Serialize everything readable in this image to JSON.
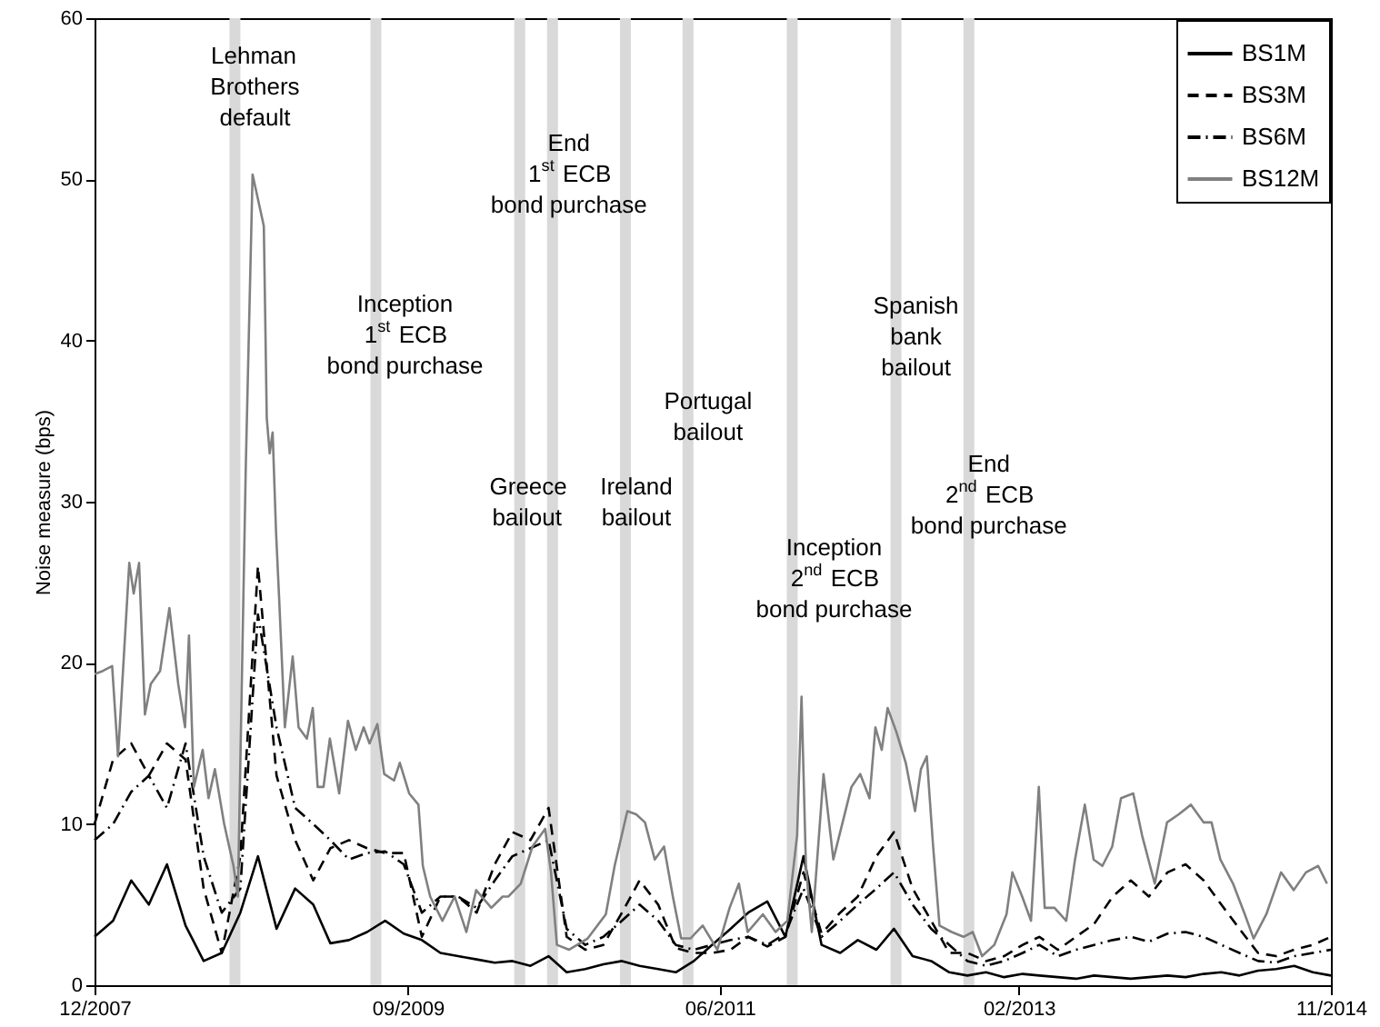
{
  "chart_data": {
    "type": "line",
    "ylabel": "Noise measure (bps)",
    "xlim": [
      "2007-12-01",
      "2014-11-01"
    ],
    "xticks": [
      {
        "value": "2007-12-01",
        "label": "12/2007"
      },
      {
        "value": "2009-09-01",
        "label": "09/2009"
      },
      {
        "value": "2011-06-01",
        "label": "06/2011"
      },
      {
        "value": "2013-02-01",
        "label": "02/2013"
      },
      {
        "value": "2014-11-01",
        "label": "11/2014"
      }
    ],
    "ylim": [
      0,
      60
    ],
    "yticks": [
      0,
      10,
      20,
      30,
      40,
      50,
      60
    ],
    "grid": false,
    "legend": "top right",
    "marker": "none",
    "x": [
      "2007-12-01",
      "2008-01-08",
      "2008-02-14",
      "2008-03-21",
      "2008-04-27",
      "2008-06-04",
      "2008-07-11",
      "2008-08-17",
      "2008-09-24",
      "2008-10-30",
      "2008-12-07",
      "2009-01-14",
      "2009-02-20",
      "2009-03-27",
      "2009-05-04",
      "2009-06-10",
      "2009-07-17",
      "2009-08-24",
      "2009-09-30",
      "2009-11-07",
      "2009-12-13",
      "2010-01-20",
      "2010-02-26",
      "2010-04-03",
      "2010-05-10",
      "2010-06-16",
      "2010-07-23",
      "2010-08-30",
      "2010-10-06",
      "2010-11-13",
      "2010-12-19",
      "2011-01-26",
      "2011-03-03",
      "2011-04-09",
      "2011-05-16",
      "2011-06-23",
      "2011-07-29",
      "2011-09-06",
      "2011-10-13",
      "2011-11-19",
      "2011-12-26",
      "2012-02-02",
      "2012-03-09",
      "2012-04-16",
      "2012-05-22",
      "2012-06-29",
      "2012-08-06",
      "2012-09-12",
      "2012-10-19",
      "2012-11-26",
      "2013-01-02",
      "2013-02-09",
      "2013-03-15",
      "2013-04-22",
      "2013-05-29",
      "2013-07-05",
      "2013-08-12",
      "2013-09-18",
      "2013-10-25",
      "2013-12-02",
      "2014-01-08",
      "2014-02-14",
      "2014-03-22",
      "2014-04-28",
      "2014-06-05",
      "2014-07-12",
      "2014-08-18",
      "2014-09-25",
      "2014-11-01"
    ],
    "series": [
      {
        "name": "BS1M",
        "color": "#000000",
        "line_style": "solid",
        "values": [
          3,
          4,
          6.5,
          5,
          7.5,
          3.7,
          1.5,
          2,
          4.5,
          8,
          3.5,
          6,
          5,
          2.6,
          2.8,
          3.3,
          4,
          3.2,
          2.8,
          2,
          1.8,
          1.6,
          1.4,
          1.5,
          1.2,
          1.8,
          0.8,
          1.0,
          1.3,
          1.5,
          1.2,
          1.0,
          0.8,
          1.5,
          2.5,
          3.5,
          4.5,
          5.2,
          3,
          8,
          2.5,
          2.0,
          2.8,
          2.2,
          3.5,
          1.8,
          1.5,
          0.8,
          0.6,
          0.8,
          0.5,
          0.7,
          0.6,
          0.5,
          0.4,
          0.6,
          0.5,
          0.4,
          0.5,
          0.6,
          0.5,
          0.7,
          0.8,
          0.6,
          0.9,
          1.0,
          1.2,
          0.8,
          0.6
        ]
      },
      {
        "name": "BS3M",
        "color": "#000000",
        "line_style": "dashed",
        "values": [
          10,
          14,
          15,
          13,
          15,
          14,
          6,
          2,
          8,
          26,
          13,
          9,
          6.5,
          8.5,
          9,
          8.5,
          8.2,
          8.2,
          3,
          5.5,
          5.5,
          4.5,
          7.5,
          9.5,
          9,
          11,
          3,
          2.2,
          2.5,
          4.5,
          6.5,
          5,
          2.3,
          2.0,
          2.0,
          2.2,
          3,
          2.4,
          3,
          7,
          3.2,
          4.5,
          5.5,
          8,
          9.5,
          6,
          4,
          2,
          2,
          1.5,
          1.8,
          2.5,
          3,
          2.2,
          3,
          3.8,
          5.5,
          6.5,
          5.5,
          7,
          7.5,
          6.5,
          5,
          3.5,
          2,
          1.8,
          2.2,
          2.5,
          3
        ]
      },
      {
        "name": "BS6M",
        "color": "#000000",
        "line_style": "dashdot",
        "values": [
          9,
          10,
          12,
          13,
          11,
          15,
          8,
          4.5,
          6,
          23,
          16,
          11,
          10,
          9,
          7.8,
          8.2,
          8.3,
          7.5,
          4.5,
          5.5,
          5.5,
          4.8,
          6.5,
          8,
          8.5,
          9,
          3.5,
          2.5,
          3,
          4,
          5,
          4,
          2.5,
          2.2,
          2.5,
          2.8,
          3,
          2.5,
          3.2,
          6,
          3,
          4,
          5,
          6,
          7,
          5,
          3.5,
          2.5,
          1.5,
          1.2,
          1.5,
          2,
          2.5,
          1.8,
          2.2,
          2.5,
          2.8,
          3,
          2.7,
          3.2,
          3.3,
          3,
          2.5,
          2,
          1.5,
          1.4,
          1.8,
          2,
          2.2
        ]
      },
      {
        "name": "BS12M",
        "color": "#808080",
        "line_style": "solid",
        "x": [
          "2007-12-01",
          "2007-12-18",
          "2008-01-06",
          "2008-01-18",
          "2008-02-10",
          "2008-02-19",
          "2008-03-01",
          "2008-03-13",
          "2008-03-25",
          "2008-04-13",
          "2008-05-02",
          "2008-05-20",
          "2008-06-03",
          "2008-06-11",
          "2008-06-21",
          "2008-07-09",
          "2008-07-21",
          "2008-08-03",
          "2008-08-22",
          "2008-09-10",
          "2008-09-19",
          "2008-10-05",
          "2008-10-19",
          "2008-11-11",
          "2008-11-17",
          "2008-11-23",
          "2008-11-29",
          "2008-12-06",
          "2008-12-12",
          "2008-12-24",
          "2009-01-09",
          "2009-01-21",
          "2009-02-07",
          "2009-02-19",
          "2009-03-01",
          "2009-03-13",
          "2009-03-26",
          "2009-04-14",
          "2009-05-02",
          "2009-05-18",
          "2009-06-03",
          "2009-06-15",
          "2009-07-01",
          "2009-07-15",
          "2009-08-04",
          "2009-08-16",
          "2009-09-04",
          "2009-09-23",
          "2009-10-02",
          "2009-10-17",
          "2009-11-11",
          "2009-12-06",
          "2009-12-30",
          "2010-01-19",
          "2010-02-19",
          "2010-03-14",
          "2010-03-26",
          "2010-04-20",
          "2010-05-14",
          "2010-06-09",
          "2010-06-21",
          "2010-07-03",
          "2010-07-28",
          "2010-09-04",
          "2010-10-11",
          "2010-10-29",
          "2010-11-24",
          "2010-12-12",
          "2010-12-30",
          "2011-01-19",
          "2011-02-07",
          "2011-02-25",
          "2011-03-14",
          "2011-04-02",
          "2011-04-27",
          "2011-05-27",
          "2011-06-21",
          "2011-07-10",
          "2011-07-28",
          "2011-08-28",
          "2011-09-23",
          "2011-10-17",
          "2011-11-06",
          "2011-11-15",
          "2011-11-24",
          "2011-12-06",
          "2011-12-30",
          "2012-01-19",
          "2012-02-07",
          "2012-02-25",
          "2012-03-14",
          "2012-04-02",
          "2012-04-14",
          "2012-04-27",
          "2012-05-09",
          "2012-05-27",
          "2012-06-15",
          "2012-07-04",
          "2012-07-16",
          "2012-07-28",
          "2012-08-10",
          "2012-08-23",
          "2012-09-17",
          "2012-10-11",
          "2012-10-30",
          "2012-11-18",
          "2012-12-13",
          "2013-01-07",
          "2013-01-19",
          "2013-02-08",
          "2013-02-26",
          "2013-03-14",
          "2013-03-26",
          "2013-04-15",
          "2013-05-09",
          "2013-05-27",
          "2013-06-16",
          "2013-07-04",
          "2013-07-22",
          "2013-08-11",
          "2013-08-29",
          "2013-09-23",
          "2013-10-11",
          "2013-11-06",
          "2013-12-01",
          "2013-12-25",
          "2014-01-19",
          "2014-02-14",
          "2014-03-02",
          "2014-03-20",
          "2014-04-15",
          "2014-05-09",
          "2014-05-27",
          "2014-06-22",
          "2014-07-22",
          "2014-08-17",
          "2014-09-11",
          "2014-10-06",
          "2014-10-24"
        ],
        "values": [
          19.3,
          19.5,
          19.8,
          14.2,
          26.2,
          24.3,
          26.2,
          16.8,
          18.7,
          19.5,
          23.4,
          18.7,
          16,
          21.7,
          12.3,
          14.6,
          11.6,
          13.4,
          10,
          7.4,
          5.5,
          32,
          50.3,
          47.1,
          35.2,
          33,
          34.3,
          28.1,
          24.2,
          16,
          20.4,
          16,
          15.3,
          17.2,
          12.3,
          12.3,
          15.3,
          11.9,
          16.4,
          14.6,
          16,
          15,
          16.2,
          13.1,
          12.7,
          13.8,
          11.9,
          11.2,
          7.4,
          5.5,
          4,
          5.5,
          3.3,
          5.9,
          4.8,
          5.5,
          5.5,
          6.3,
          8.6,
          9.7,
          7,
          2.5,
          2.2,
          2.9,
          4.4,
          7.4,
          10.8,
          10.6,
          10.1,
          7.8,
          8.6,
          5.5,
          2.9,
          2.9,
          3.7,
          2.2,
          4.8,
          6.3,
          3.3,
          4.4,
          3.3,
          4,
          9.3,
          17.9,
          7.4,
          3.3,
          13.1,
          7.8,
          10.1,
          12.3,
          13.1,
          11.6,
          16,
          14.6,
          17.2,
          15.7,
          13.8,
          10.8,
          13.4,
          14.2,
          8.6,
          3.7,
          3.3,
          3,
          3.3,
          1.8,
          2.5,
          4.4,
          7,
          5.5,
          4,
          12.3,
          4.8,
          4.8,
          4,
          7.8,
          11.2,
          7.8,
          7.4,
          8.6,
          11.6,
          11.9,
          9.3,
          6.3,
          10.1,
          10.6,
          11.2,
          10.1,
          10.1,
          7.8,
          6.3,
          4.4,
          2.9,
          4.4,
          7,
          5.9,
          7,
          7.4,
          6.3
        ]
      }
    ],
    "ref_lines": [
      {
        "axis": "x",
        "value": "2008-09-13",
        "label": "Lehman\nBrothers\ndefault",
        "color": "#d9d9d9"
      },
      {
        "axis": "x",
        "value": "2009-06-28",
        "label": "Inception\n1$^{st}$ ECB\nbond purchase",
        "color": "#d9d9d9"
      },
      {
        "axis": "x",
        "value": "2010-04-18",
        "label": "Greece\nbailout",
        "color": "#d9d9d9"
      },
      {
        "axis": "x",
        "value": "2010-06-24",
        "label": "End\n1$^{st}$ ECB\nbond purchase",
        "color": "#d9d9d9"
      },
      {
        "axis": "x",
        "value": "2010-11-20",
        "label": "Ireland\nbailout",
        "color": "#d9d9d9"
      },
      {
        "axis": "x",
        "value": "2011-03-28",
        "label": "Portugal\nbailout",
        "color": "#d9d9d9"
      },
      {
        "axis": "x",
        "value": "2011-10-27",
        "label": "Inception\n2$^{nd}$ ECB\nbond purchase",
        "color": "#d9d9d9"
      },
      {
        "axis": "x",
        "value": "2012-05-26",
        "label": "Spanish\nbank\nbailout",
        "color": "#d9d9d9"
      },
      {
        "axis": "x",
        "value": "2012-10-22",
        "label": "End\n2$^{nd}$ ECB\nbond purchase",
        "color": "#d9d9d9"
      }
    ]
  }
}
